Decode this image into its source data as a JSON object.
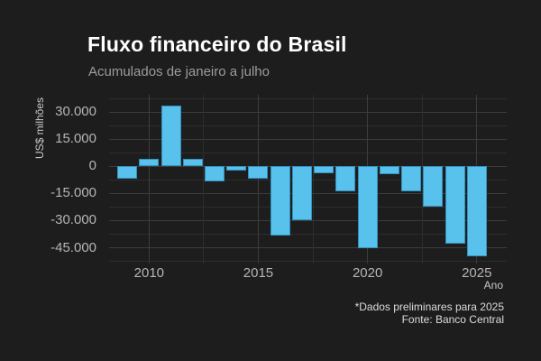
{
  "header": {
    "title": "Fluxo financeiro do Brasil",
    "subtitle": "Acumulados de janeiro a julho"
  },
  "footer": {
    "note": "*Dados preliminares para 2025",
    "source": "Fonte: Banco Central"
  },
  "chart_data": {
    "type": "bar",
    "title": "Fluxo financeiro do Brasil",
    "subtitle": "Acumulados de janeiro a julho",
    "xlabel": "Ano",
    "ylabel": "US$ milhões",
    "categories": [
      2009,
      2010,
      2011,
      2012,
      2013,
      2014,
      2015,
      2016,
      2017,
      2018,
      2019,
      2020,
      2021,
      2022,
      2023,
      2024,
      2025
    ],
    "values": [
      -6800,
      4100,
      33700,
      4300,
      -8500,
      -2300,
      -6900,
      -38400,
      -29700,
      -3700,
      -13800,
      -45200,
      -4600,
      -14000,
      -22500,
      -42800,
      -49500
    ],
    "ylim": [
      -53700,
      39500
    ],
    "y_ticks": [
      {
        "value": 30000,
        "label": "30.000"
      },
      {
        "value": 15000,
        "label": "15.000"
      },
      {
        "value": 0,
        "label": "0"
      },
      {
        "value": -15000,
        "label": "-15.000"
      },
      {
        "value": -30000,
        "label": "-30.000"
      },
      {
        "value": -45000,
        "label": "-45.000"
      }
    ],
    "y_minor_ticks": [
      37500,
      22500,
      7500,
      -7500,
      -22500,
      -37500,
      -52500
    ],
    "x_ticks": [
      {
        "value": 2010,
        "label": "2010"
      },
      {
        "value": 2015,
        "label": "2015"
      },
      {
        "value": 2020,
        "label": "2020"
      },
      {
        "value": 2025,
        "label": "2025"
      }
    ],
    "x_minor_ticks": [
      2012.5,
      2017.5,
      2022.5
    ],
    "grid": true,
    "legend": false,
    "caption": "*Dados preliminares para 2025\nFonte: Banco Central"
  },
  "colors": {
    "bg": "#1d1d1d",
    "title": "#ffffff",
    "subtitle": "#9c9c9c",
    "axis_text": "#b5b5b5",
    "axis_title": "#c9c9c9",
    "caption": "#dcdcdc",
    "grid_major": "#3c3c3c",
    "grid_minor": "#2d2d2d",
    "bar_fill": "#58c1ec",
    "bar_border": "#3490bd"
  }
}
